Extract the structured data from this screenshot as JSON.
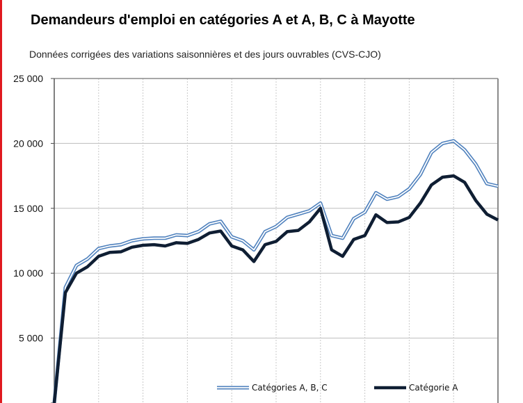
{
  "page": {
    "title": "Demandeurs d'emploi en catégories A et A, B, C à Mayotte",
    "subtitle": "Données corrigées des variations saisonnières et des jours ouvrables (CVS-CJO)"
  },
  "colors": {
    "frame_accent": "#e0191f",
    "series_abc": "#4f81bd",
    "series_a": "#0f1e33",
    "grid": "#bdbdbd"
  },
  "chart_data": {
    "type": "line",
    "title": "Demandeurs d'emploi en catégories A et A, B, C à Mayotte",
    "subtitle": "Données corrigées des variations saisonnières et des jours ouvrables (CVS-CJO)",
    "ylim": [
      0,
      25000
    ],
    "yticks": [
      0,
      5000,
      10000,
      15000,
      20000,
      25000
    ],
    "ytick_labels": [
      "",
      "5 000",
      "10 000",
      "15 000",
      "20 000",
      "25 000"
    ],
    "grid": true,
    "legend": "bottom",
    "series": [
      {
        "name": "Catégories A, B, C",
        "style": "double-line",
        "color": "#4f81bd",
        "values": [
          0,
          8900,
          10600,
          11100,
          11900,
          12100,
          12200,
          12500,
          12650,
          12700,
          12700,
          12950,
          12900,
          13200,
          13800,
          14000,
          12800,
          12500,
          11800,
          13200,
          13600,
          14300,
          14550,
          14800,
          15400,
          12900,
          12700,
          14200,
          14700,
          16200,
          15700,
          15900,
          16500,
          17600,
          19300,
          20000,
          20200,
          19500,
          18400,
          16900,
          16700
        ]
      },
      {
        "name": "Catégorie A",
        "style": "thick-line",
        "color": "#0f1e33",
        "values": [
          0,
          8500,
          10000,
          10500,
          11300,
          11600,
          11650,
          12000,
          12150,
          12200,
          12100,
          12350,
          12300,
          12600,
          13100,
          13250,
          12100,
          11800,
          10900,
          12200,
          12450,
          13200,
          13300,
          13950,
          15000,
          11800,
          11300,
          12600,
          12900,
          14500,
          13900,
          13950,
          14300,
          15400,
          16800,
          17400,
          17500,
          17000,
          15600,
          14550,
          14100
        ]
      }
    ]
  }
}
